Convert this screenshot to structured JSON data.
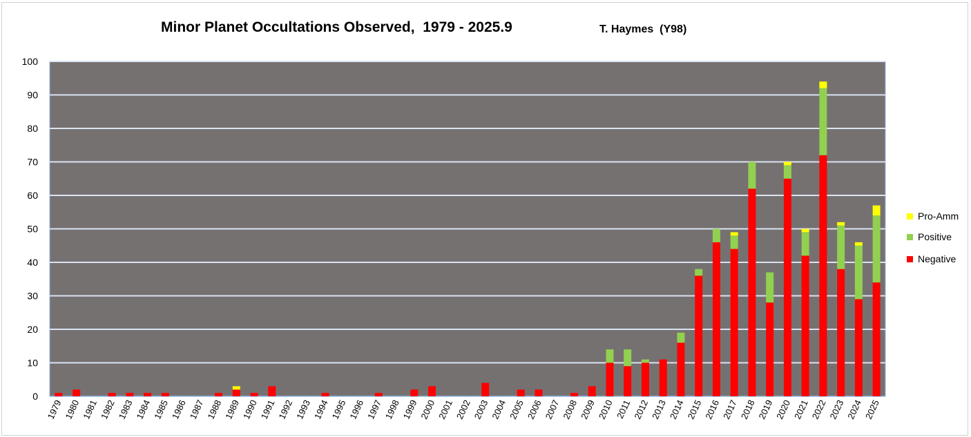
{
  "chart_data": {
    "type": "bar",
    "stacked": true,
    "title": "Minor Planet Occultations Observed,  1979 - 2025.9",
    "subtitle": "T. Haymes  (Y98)",
    "xlabel": "",
    "ylabel": "",
    "ylim": [
      0,
      100
    ],
    "yticks": [
      0,
      10,
      20,
      30,
      40,
      50,
      60,
      70,
      80,
      90,
      100
    ],
    "grid": true,
    "legend_position": "right",
    "categories": [
      "1979",
      "1980",
      "1981",
      "1982",
      "1983",
      "1984",
      "1985",
      "1986",
      "1987",
      "1988",
      "1989",
      "1990",
      "1991",
      "1992",
      "1993",
      "1994",
      "1995",
      "1996",
      "1997",
      "1998",
      "1999",
      "2000",
      "2001",
      "2002",
      "2003",
      "2004",
      "2005",
      "2006",
      "2007",
      "2008",
      "2009",
      "2010",
      "2011",
      "2012",
      "2013",
      "2014",
      "2015",
      "2016",
      "2017",
      "2018",
      "2019",
      "2020",
      "2021",
      "2022",
      "2023",
      "2024",
      "2025"
    ],
    "series": [
      {
        "name": "Negative",
        "color": "#ff0000",
        "values": [
          1,
          2,
          0,
          1,
          1,
          1,
          1,
          0,
          0,
          1,
          2,
          1,
          3,
          0,
          0,
          1,
          0,
          0,
          1,
          0,
          2,
          3,
          0,
          0,
          4,
          0,
          2,
          2,
          0,
          1,
          3,
          10,
          9,
          10,
          11,
          16,
          36,
          46,
          44,
          62,
          28,
          65,
          42,
          72,
          38,
          29,
          34
        ]
      },
      {
        "name": "Positive",
        "color": "#92d050",
        "values": [
          0,
          0,
          0,
          0,
          0,
          0,
          0,
          0,
          0,
          0,
          0,
          0,
          0,
          0,
          0,
          0,
          0,
          0,
          0,
          0,
          0,
          0,
          0,
          0,
          0,
          0,
          0,
          0,
          0,
          0,
          0,
          4,
          5,
          1,
          0,
          3,
          2,
          4,
          4,
          8,
          9,
          4,
          7,
          20,
          13,
          16,
          20
        ]
      },
      {
        "name": "Pro-Amm",
        "color": "#ffff00",
        "values": [
          0,
          0,
          0,
          0,
          0,
          0,
          0,
          0,
          0,
          0,
          1,
          0,
          0,
          0,
          0,
          0,
          0,
          0,
          0,
          0,
          0,
          0,
          0,
          0,
          0,
          0,
          0,
          0,
          0,
          0,
          0,
          0,
          0,
          0,
          0,
          0,
          0,
          0,
          1,
          0,
          0,
          1,
          1,
          2,
          1,
          1,
          3
        ]
      }
    ],
    "legend_order": [
      "Pro-Amm",
      "Positive",
      "Negative"
    ],
    "plot_background": "#767171",
    "gridline_color": "#d9e4f2"
  }
}
